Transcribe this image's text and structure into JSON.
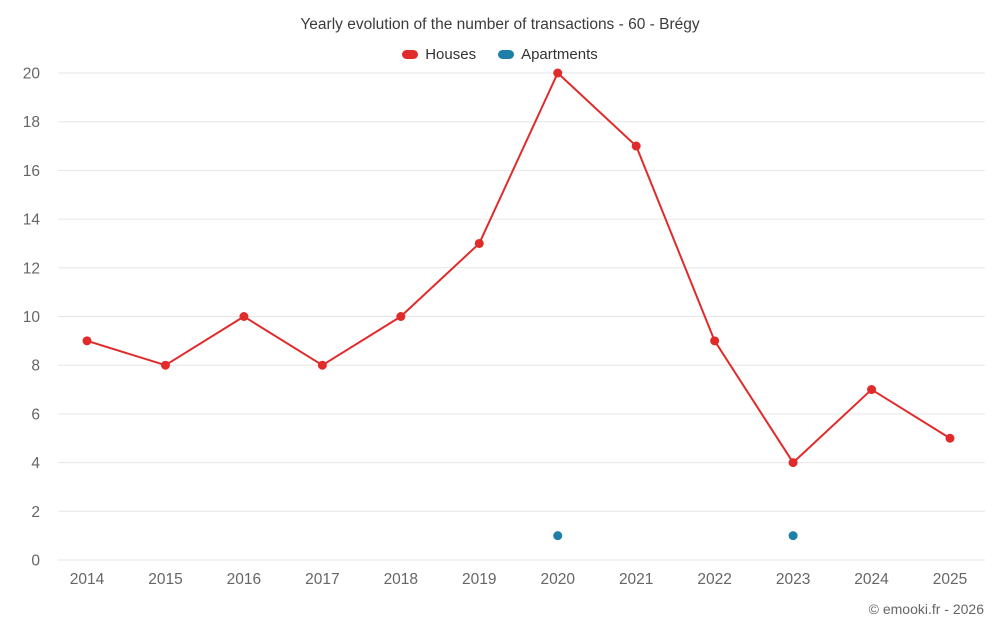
{
  "header": {
    "title": "Yearly evolution of the number of transactions - 60 - Brégy"
  },
  "legend": [
    {
      "label": "Houses",
      "color": "#e12b2b"
    },
    {
      "label": "Apartments",
      "color": "#1e7fa8"
    }
  ],
  "footer": {
    "credit": "© emooki.fr - 2026"
  },
  "colors": {
    "grid": "#e6e6e6",
    "axis_text": "#666666",
    "title_text": "#3c3c3c"
  },
  "chart_data": {
    "type": "line",
    "title": "Yearly evolution of the number of transactions - 60 - Brégy",
    "categories": [
      "2014",
      "2015",
      "2016",
      "2017",
      "2018",
      "2019",
      "2020",
      "2021",
      "2022",
      "2023",
      "2024",
      "2025"
    ],
    "series": [
      {
        "name": "Houses",
        "color": "#e12b2b",
        "values": [
          9,
          8,
          10,
          8,
          10,
          13,
          20,
          17,
          9,
          4,
          7,
          5
        ]
      },
      {
        "name": "Apartments",
        "color": "#1e7fa8",
        "values": [
          null,
          null,
          null,
          null,
          null,
          null,
          1,
          null,
          null,
          1,
          null,
          null
        ]
      }
    ],
    "xlabel": "",
    "ylabel": "",
    "ylim": [
      0,
      20
    ],
    "ytick_step": 2,
    "grid": "horizontal",
    "legend_position": "top"
  }
}
